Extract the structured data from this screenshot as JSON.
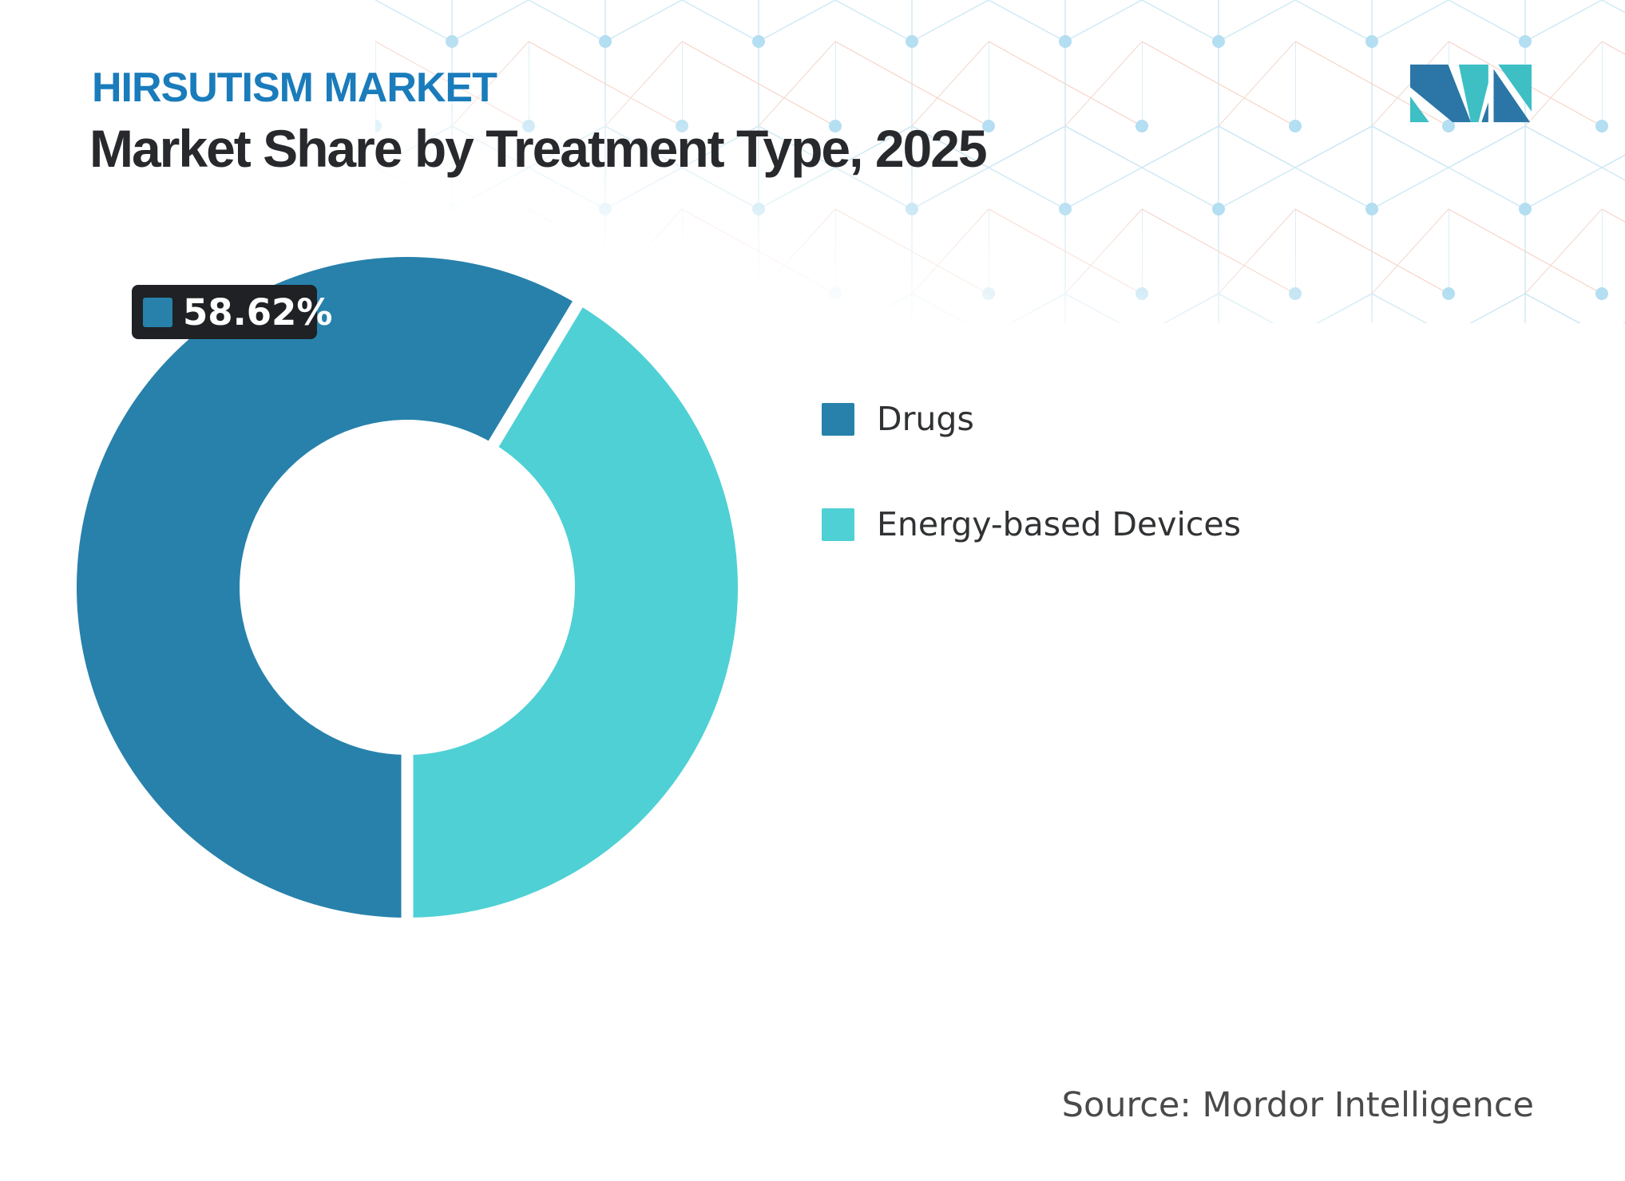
{
  "header": {
    "eyebrow": "HIRSUTISM MARKET",
    "title": "Market Share by Treatment Type, 2025"
  },
  "colors": {
    "brand_blue": "#1a7cbb",
    "title_text": "#28292c",
    "drugs_slice": "#2781ab",
    "devices_slice": "#4fd0d4",
    "badge_bg": "#1f2124",
    "logo_blue": "#2b76a6",
    "logo_teal": "#3dbfc4"
  },
  "legend": {
    "items": [
      {
        "label": "Drugs",
        "color": "#2781ab"
      },
      {
        "label": "Energy-based Devices",
        "color": "#4fd0d4"
      }
    ]
  },
  "footer": {
    "source": "Source: Mordor Intelligence"
  },
  "chart_data": {
    "type": "pie",
    "subtype": "donut",
    "title": "Market Share by Treatment Type, 2025",
    "year": "2025",
    "start_angle_deg": 180,
    "inner_radius_ratio": 0.51,
    "legend_position": "right",
    "series": [
      {
        "name": "Drugs",
        "value": 58.62,
        "color": "#2781ab"
      },
      {
        "name": "Energy-based Devices",
        "value": 41.38,
        "color": "#4fd0d4"
      }
    ],
    "data_label": {
      "text": "58.62%",
      "series": "Drugs"
    }
  }
}
